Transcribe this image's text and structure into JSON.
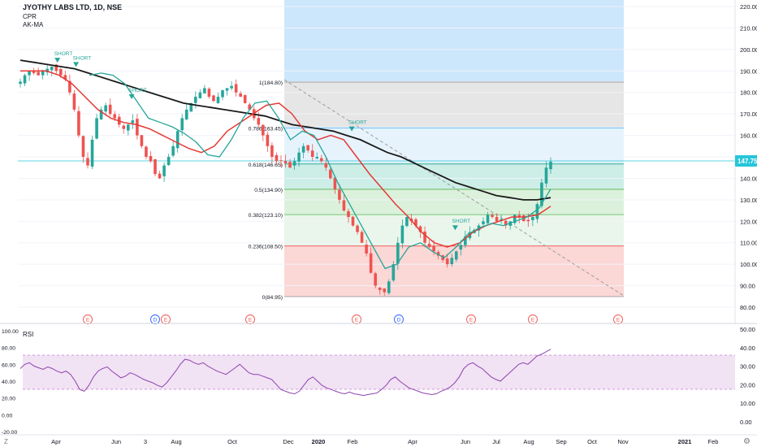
{
  "header": {
    "symbol": "JYOTHY LABS LTD, 1D, NSE",
    "indicator1": "CPR",
    "indicator2": "AK-MA"
  },
  "chart_data": [
    {
      "type": "candlestick",
      "ylim": [
        80,
        220
      ],
      "price_ticks": [
        "220.00",
        "210.00",
        "200.00",
        "190.00",
        "180.00",
        "170.00",
        "160.00",
        "150.00",
        "140.00",
        "130.00",
        "120.00",
        "110.00",
        "100.00",
        "90.00",
        "80.00"
      ],
      "last_price": "147.75",
      "x_ticks": [
        "Apr",
        "Jun",
        "3",
        "Aug",
        "Oct",
        "Dec",
        "2020",
        "Feb",
        "Apr",
        "Jun",
        "Jul",
        "Aug",
        "Sep",
        "Oct",
        "Nov",
        "2021",
        "Feb"
      ],
      "colors": {
        "up": "#26a69a",
        "down": "#ef5350",
        "ma_long": "#1a1a1a",
        "ma_mid": "#e53935",
        "ma_short": "#26a69a",
        "last_price": "#26c6da"
      },
      "fib_levels": [
        {
          "label": "1(184.80)",
          "value": 184.8,
          "color": "#9e9e9e"
        },
        {
          "label": "0.786(163.45)",
          "value": 163.45,
          "color": "#64b5f6"
        },
        {
          "label": "0.618(146.65)",
          "value": 146.65,
          "color": "#26a69a"
        },
        {
          "label": "0.5(134.90)",
          "value": 134.9,
          "color": "#4caf50"
        },
        {
          "label": "0.382(123.10)",
          "value": 123.1,
          "color": "#66bb6a"
        },
        {
          "label": "0.236(108.50)",
          "value": 108.5,
          "color": "#ef5350"
        },
        {
          "label": "0(84.95)",
          "value": 84.95,
          "color": "#9e9e9e"
        }
      ],
      "short_signals": [
        {
          "label": "SHORT",
          "value": 195
        },
        {
          "label": "SHORT",
          "value": 193
        },
        {
          "label": "SHORT",
          "value": 178
        },
        {
          "label": "SHORT",
          "value": 163
        },
        {
          "label": "SHORT",
          "value": 117
        }
      ],
      "event_markers": [
        "E",
        "D",
        "E",
        "E",
        "E",
        "D",
        "E",
        "E",
        "E"
      ],
      "price_path": [
        185,
        188,
        190,
        189,
        188,
        190,
        191,
        192,
        190,
        188,
        186,
        180,
        172,
        160,
        150,
        146,
        158,
        168,
        172,
        174,
        170,
        168,
        165,
        163,
        165,
        167,
        160,
        155,
        150,
        148,
        142,
        140,
        146,
        150,
        155,
        162,
        168,
        172,
        175,
        178,
        180,
        182,
        178,
        176,
        178,
        181,
        182,
        183,
        180,
        178,
        175,
        172,
        168,
        165,
        160,
        155,
        150,
        148,
        148,
        147,
        145,
        148,
        152,
        155,
        153,
        150,
        150,
        148,
        145,
        140,
        135,
        130,
        125,
        122,
        118,
        115,
        110,
        105,
        96,
        90,
        88,
        87,
        92,
        100,
        110,
        118,
        122,
        120,
        118,
        115,
        110,
        108,
        106,
        104,
        102,
        100,
        103,
        106,
        109,
        113,
        115,
        116,
        118,
        120,
        123,
        122,
        120,
        121,
        118,
        120,
        123,
        122,
        120,
        120,
        122,
        128,
        138,
        145,
        147.75
      ],
      "ma_long_path": [
        195,
        194,
        193,
        192,
        191,
        189,
        187,
        185,
        183,
        181,
        179,
        177,
        175,
        174,
        173,
        172,
        171,
        170,
        169,
        167,
        165,
        164,
        163,
        162,
        160,
        158,
        155,
        152,
        150,
        147,
        144,
        141,
        138,
        136,
        134,
        132,
        131,
        130,
        130,
        131
      ],
      "ma_mid_path": [
        190,
        190,
        190,
        188,
        184,
        178,
        172,
        168,
        166,
        165,
        163,
        160,
        157,
        154,
        152,
        155,
        162,
        166,
        170,
        174,
        175,
        170,
        162,
        158,
        160,
        158,
        150,
        142,
        135,
        128,
        122,
        115,
        110,
        108,
        110,
        115,
        118,
        120,
        122,
        122,
        123,
        127
      ],
      "ma_short_path": [
        188,
        189,
        188,
        184,
        176,
        168,
        166,
        164,
        161,
        157,
        151,
        150,
        158,
        168,
        175,
        176,
        168,
        158,
        162,
        160,
        150,
        138,
        128,
        118,
        108,
        98,
        100,
        108,
        110,
        106,
        103,
        108,
        114,
        117,
        119,
        118,
        120,
        122,
        126,
        135
      ],
      "x_range": [
        0,
        116
      ]
    },
    {
      "type": "line",
      "title": "RSI",
      "ylim": [
        -20,
        100
      ],
      "left_ticks": [
        "100.00",
        "80.00",
        "60.00",
        "40.00",
        "20.00",
        "0.00",
        "-20.00"
      ],
      "right_ticks": [
        "50.00",
        "40.00",
        "30.00",
        "20.00",
        "10.00",
        "0.00"
      ],
      "band": [
        30,
        70
      ],
      "series": [
        {
          "values": [
            55,
            60,
            62,
            58,
            56,
            54,
            57,
            55,
            52,
            50,
            52,
            48,
            40,
            30,
            28,
            35,
            45,
            52,
            55,
            57,
            52,
            48,
            44,
            46,
            50,
            48,
            45,
            42,
            40,
            38,
            35,
            33,
            38,
            45,
            52,
            60,
            66,
            65,
            62,
            60,
            62,
            58,
            55,
            52,
            50,
            48,
            52,
            56,
            60,
            55,
            50,
            48,
            48,
            46,
            44,
            42,
            36,
            30,
            28,
            26,
            25,
            28,
            35,
            42,
            45,
            40,
            35,
            32,
            30,
            28,
            26,
            25,
            27,
            25,
            24,
            23,
            24,
            25,
            26,
            30,
            35,
            42,
            45,
            40,
            36,
            32,
            30,
            28,
            26,
            25,
            24,
            25,
            28,
            30,
            33,
            38,
            45,
            55,
            60,
            62,
            58,
            55,
            50,
            45,
            42,
            40,
            45,
            50,
            55,
            60,
            62,
            60,
            65,
            70,
            72,
            75,
            78
          ]
        }
      ]
    }
  ]
}
